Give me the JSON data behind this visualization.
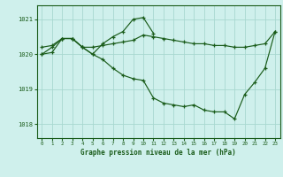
{
  "title": "Graphe pression niveau de la mer (hPa)",
  "background_color": "#cff0ec",
  "line_color": "#1a5c1a",
  "grid_color": "#a8d8d0",
  "xlim": [
    -0.5,
    23.5
  ],
  "ylim": [
    1017.6,
    1021.4
  ],
  "yticks": [
    1018,
    1019,
    1020,
    1021
  ],
  "xticks": [
    0,
    1,
    2,
    3,
    4,
    5,
    6,
    7,
    8,
    9,
    10,
    11,
    12,
    13,
    14,
    15,
    16,
    17,
    18,
    19,
    20,
    21,
    22,
    23
  ],
  "line1_x": [
    0,
    1,
    2,
    3,
    4,
    5,
    6,
    7,
    8,
    9,
    10,
    11,
    12,
    13,
    14,
    15,
    16,
    17,
    18,
    19,
    20,
    21,
    22,
    23
  ],
  "line1_y": [
    1020.2,
    1020.25,
    1020.45,
    1020.45,
    1020.2,
    1020.2,
    1020.25,
    1020.3,
    1020.35,
    1020.4,
    1020.55,
    1020.5,
    1020.45,
    1020.4,
    1020.35,
    1020.3,
    1020.3,
    1020.25,
    1020.25,
    1020.2,
    1020.2,
    1020.25,
    1020.3,
    1020.65
  ],
  "line2_x": [
    0,
    1,
    2,
    3,
    4,
    5,
    6,
    7,
    8,
    9,
    10,
    11
  ],
  "line2_y": [
    1020.0,
    1020.2,
    1020.45,
    1020.45,
    1020.2,
    1020.0,
    1020.3,
    1020.5,
    1020.65,
    1021.0,
    1021.05,
    1020.6
  ],
  "line3_x": [
    0,
    1,
    2,
    3,
    4,
    5,
    6,
    7,
    8,
    9,
    10,
    11,
    12,
    13,
    14,
    15,
    16,
    17,
    18,
    19,
    20,
    21,
    22,
    23
  ],
  "line3_y": [
    1020.0,
    1020.05,
    1020.45,
    1020.45,
    1020.2,
    1020.0,
    1019.85,
    1019.6,
    1019.4,
    1019.3,
    1019.25,
    1018.75,
    1018.6,
    1018.55,
    1018.5,
    1018.55,
    1018.4,
    1018.35,
    1018.35,
    1018.15,
    1018.85,
    1019.2,
    1019.6,
    1020.65
  ]
}
